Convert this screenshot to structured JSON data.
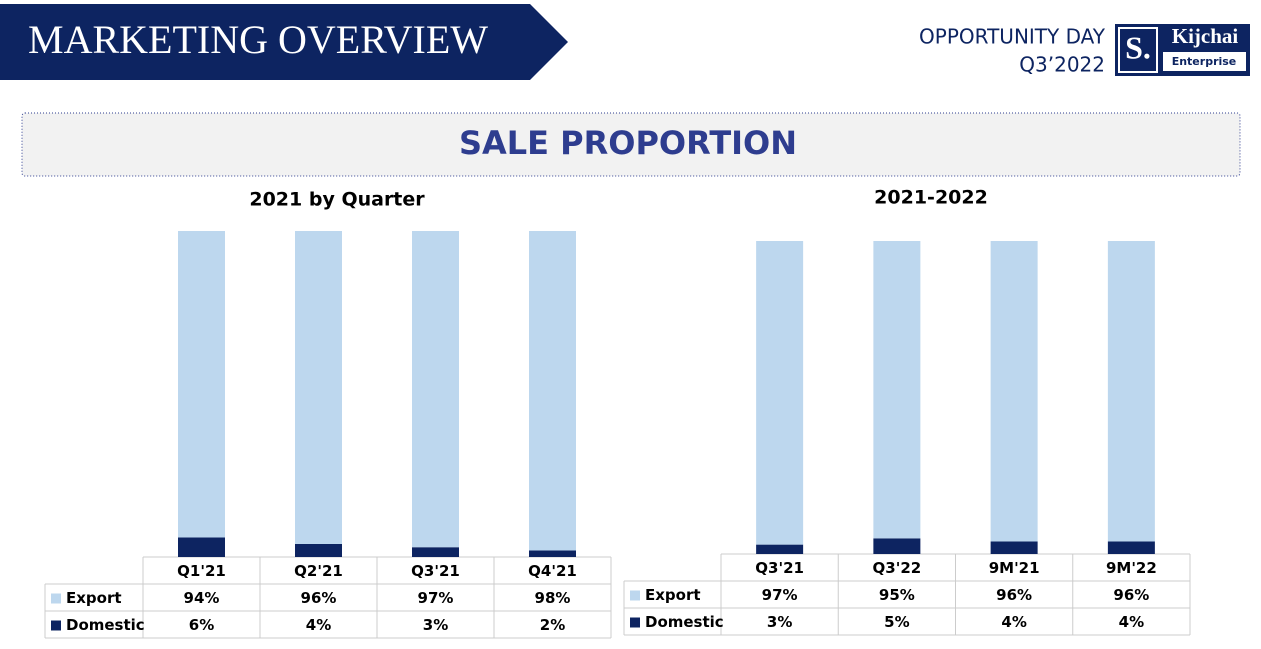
{
  "header": {
    "title": "MARKETING OVERVIEW",
    "event": "OPPORTUNITY DAY",
    "period": "Q3’2022",
    "logo": {
      "mark": "S.",
      "name": "Kijchai",
      "sub": "Enterprise"
    }
  },
  "section_title": "SALE PROPORTION",
  "chart_data": [
    {
      "type": "stacked_bar",
      "title": "2021 by Quarter",
      "categories": [
        "Q1'21",
        "Q2'21",
        "Q3'21",
        "Q4'21"
      ],
      "series": [
        {
          "name": "Domestic",
          "color": "#0d2461",
          "values": [
            6,
            4,
            3,
            2
          ],
          "value_labels": [
            "6%",
            "4%",
            "3%",
            "2%"
          ]
        },
        {
          "name": "Export",
          "color": "#bdd7ee",
          "values": [
            94,
            96,
            97,
            98
          ],
          "value_labels": [
            "94%",
            "96%",
            "97%",
            "98%"
          ]
        }
      ]
    },
    {
      "type": "stacked_bar",
      "title": "2021-2022",
      "categories": [
        "Q3'21",
        "Q3'22",
        "9M'21",
        "9M'22"
      ],
      "series": [
        {
          "name": "Domestic",
          "color": "#0d2461",
          "values": [
            3,
            5,
            4,
            4
          ],
          "value_labels": [
            "3%",
            "5%",
            "4%",
            "4%"
          ]
        },
        {
          "name": "Export",
          "color": "#bdd7ee",
          "values": [
            97,
            95,
            96,
            96
          ],
          "value_labels": [
            "97%",
            "95%",
            "96%",
            "96%"
          ]
        }
      ]
    }
  ]
}
